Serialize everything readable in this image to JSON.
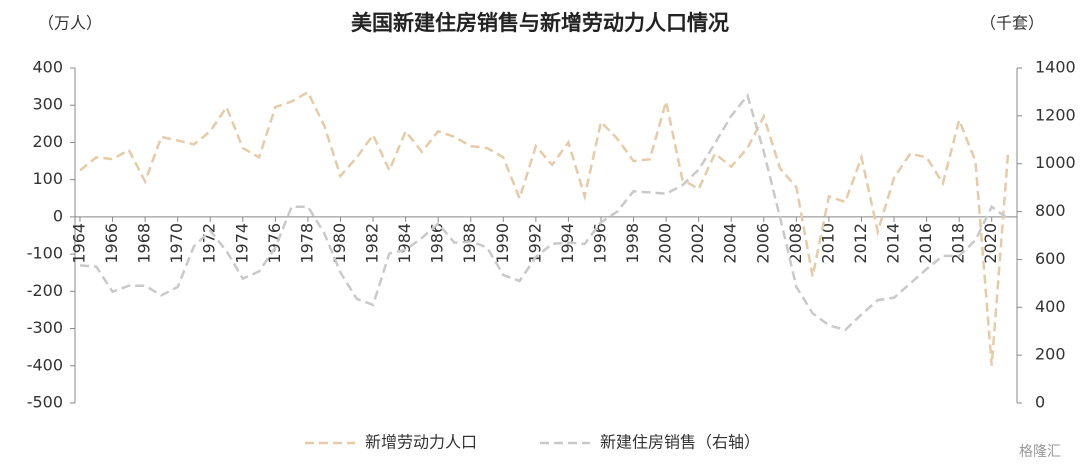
{
  "chart_data": {
    "type": "line",
    "title": "美国新建住房销售与新增劳动力人口情况",
    "y_label": "（万人）",
    "y2_label": "（千套）",
    "watermark": "格隆汇",
    "x": [
      1964,
      1965,
      1966,
      1967,
      1968,
      1969,
      1970,
      1971,
      1972,
      1973,
      1974,
      1975,
      1976,
      1977,
      1978,
      1979,
      1980,
      1981,
      1982,
      1983,
      1984,
      1985,
      1986,
      1987,
      1988,
      1989,
      1990,
      1991,
      1992,
      1993,
      1994,
      1995,
      1996,
      1997,
      1998,
      1999,
      2000,
      2001,
      2002,
      2003,
      2004,
      2005,
      2006,
      2007,
      2008,
      2009,
      2010,
      2011,
      2012,
      2013,
      2014,
      2015,
      2016,
      2017,
      2018,
      2019,
      2020,
      2021
    ],
    "xlim": [
      1964,
      2021
    ],
    "xticks": [
      1964,
      1966,
      1968,
      1970,
      1972,
      1974,
      1976,
      1978,
      1980,
      1982,
      1984,
      1986,
      1988,
      1990,
      1992,
      1994,
      1996,
      1998,
      2000,
      2002,
      2004,
      2006,
      2008,
      2010,
      2012,
      2014,
      2016,
      2018,
      2020
    ],
    "ylim": [
      -500,
      400
    ],
    "yticks": [
      -500,
      -400,
      -300,
      -200,
      -100,
      0,
      100,
      200,
      300,
      400
    ],
    "y2lim": [
      0,
      1400
    ],
    "y2ticks": [
      0,
      200,
      400,
      600,
      800,
      1000,
      1200,
      1400
    ],
    "series": [
      {
        "name": "新增劳动力人口",
        "color": "#e6cba6",
        "axis": "y",
        "values": [
          125,
          160,
          155,
          180,
          95,
          215,
          205,
          195,
          230,
          295,
          185,
          160,
          295,
          310,
          335,
          245,
          110,
          160,
          220,
          125,
          230,
          175,
          230,
          215,
          190,
          185,
          160,
          50,
          190,
          140,
          200,
          55,
          255,
          210,
          150,
          155,
          310,
          100,
          75,
          170,
          135,
          185,
          270,
          130,
          80,
          -160,
          55,
          40,
          160,
          -40,
          105,
          170,
          160,
          90,
          260,
          150,
          -400,
          170
        ]
      },
      {
        "name": "新建住房销售（右轴）",
        "color": "#c9c9c9",
        "axis": "y2",
        "values": [
          575,
          570,
          465,
          490,
          490,
          450,
          485,
          655,
          720,
          635,
          520,
          550,
          650,
          820,
          820,
          710,
          545,
          435,
          410,
          625,
          640,
          690,
          750,
          670,
          675,
          650,
          535,
          510,
          610,
          665,
          670,
          665,
          755,
          800,
          885,
          880,
          875,
          910,
          975,
          1085,
          1200,
          1285,
          1050,
          775,
          485,
          375,
          325,
          305,
          370,
          430,
          440,
          500,
          560,
          615,
          615,
          680,
          820,
          770
        ]
      }
    ]
  }
}
